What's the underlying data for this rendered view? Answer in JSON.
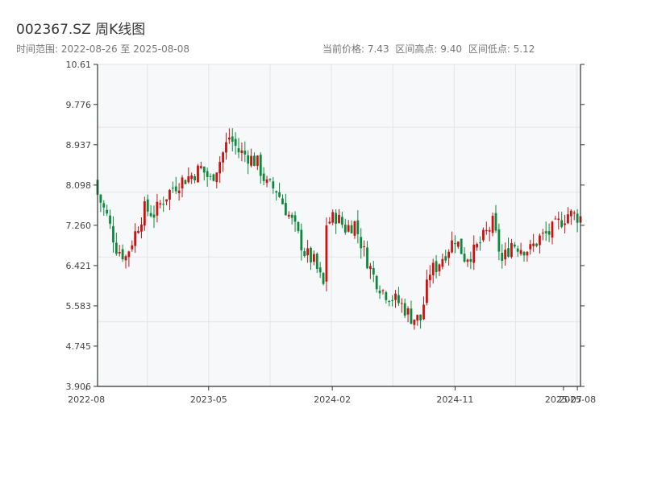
{
  "header": {
    "title": "002367.SZ 周K线图",
    "range_label": "时间范围: 2022-08-26 至 2025-08-08",
    "current_price": "当前价格: 7.43",
    "high": "区间高点: 9.40",
    "low": "区间低点: 5.12"
  },
  "colors": {
    "up": "#cc1111",
    "down": "#0a8a3a",
    "plot_bg": "#f7f8fa",
    "grid": "#e3e5e8",
    "axis": "#333333"
  },
  "chart_data": {
    "type": "candlestick",
    "title": "002367.SZ 周K线图",
    "xlabel": "",
    "ylabel": "",
    "ylim": [
      3.906,
      10.61
    ],
    "yticks": [
      "3.906",
      "4.745",
      "5.583",
      "6.421",
      "7.260",
      "8.098",
      "8.937",
      "9.776",
      "10.61"
    ],
    "xlim": [
      "2022-08-26",
      "2025-08-08"
    ],
    "xticks": [
      {
        "date": "2022-08-01",
        "label": "2022-08"
      },
      {
        "date": "2023-05-01",
        "label": "2023-05"
      },
      {
        "date": "2024-02-01",
        "label": "2024-02"
      },
      {
        "date": "2024-11-01",
        "label": "2024-11"
      },
      {
        "date": "2025-07-01",
        "label": "2025-07"
      },
      {
        "date": "2025-08-01",
        "label": "2025-08"
      }
    ],
    "gridlines": [
      3.906,
      5.25,
      6.6,
      7.95,
      9.3,
      10.61
    ],
    "anchors": [
      [
        "2022-08-26",
        7.9
      ],
      [
        "2022-09-16",
        7.45
      ],
      [
        "2022-10-07",
        6.8
      ],
      [
        "2022-10-28",
        6.6
      ],
      [
        "2022-11-18",
        7.1
      ],
      [
        "2022-12-09",
        7.6
      ],
      [
        "2022-12-30",
        7.5
      ],
      [
        "2023-01-20",
        7.8
      ],
      [
        "2023-02-10",
        8.05
      ],
      [
        "2023-03-03",
        8.2
      ],
      [
        "2023-03-24",
        8.3
      ],
      [
        "2023-04-14",
        8.45
      ],
      [
        "2023-05-05",
        8.2
      ],
      [
        "2023-05-26",
        8.6
      ],
      [
        "2023-06-16",
        9.1
      ],
      [
        "2023-07-07",
        8.8
      ],
      [
        "2023-07-28",
        8.7
      ],
      [
        "2023-08-18",
        8.55
      ],
      [
        "2023-09-08",
        8.1
      ],
      [
        "2023-09-29",
        8.0
      ],
      [
        "2023-10-20",
        7.6
      ],
      [
        "2023-11-10",
        7.2
      ],
      [
        "2023-12-01",
        6.7
      ],
      [
        "2023-12-22",
        6.5
      ],
      [
        "2024-01-12",
        6.0
      ],
      [
        "2024-01-19",
        7.3
      ],
      [
        "2024-02-09",
        7.45
      ],
      [
        "2024-03-01",
        7.2
      ],
      [
        "2024-03-22",
        7.3
      ],
      [
        "2024-04-12",
        6.7
      ],
      [
        "2024-05-03",
        6.2
      ],
      [
        "2024-05-24",
        5.9
      ],
      [
        "2024-06-14",
        5.75
      ],
      [
        "2024-07-05",
        5.6
      ],
      [
        "2024-07-26",
        5.35
      ],
      [
        "2024-08-16",
        5.3
      ],
      [
        "2024-09-06",
        6.3
      ],
      [
        "2024-09-20",
        6.4
      ],
      [
        "2024-10-11",
        6.7
      ],
      [
        "2024-11-01",
        7.0
      ],
      [
        "2024-11-22",
        6.6
      ],
      [
        "2024-12-13",
        6.7
      ],
      [
        "2025-01-03",
        7.0
      ],
      [
        "2025-01-24",
        7.3
      ],
      [
        "2025-02-14",
        6.5
      ],
      [
        "2025-03-07",
        6.9
      ],
      [
        "2025-03-28",
        6.8
      ],
      [
        "2025-04-18",
        6.75
      ],
      [
        "2025-05-09",
        7.0
      ],
      [
        "2025-05-30",
        7.1
      ],
      [
        "2025-06-20",
        7.3
      ],
      [
        "2025-07-11",
        7.5
      ],
      [
        "2025-08-08",
        7.43
      ]
    ]
  }
}
